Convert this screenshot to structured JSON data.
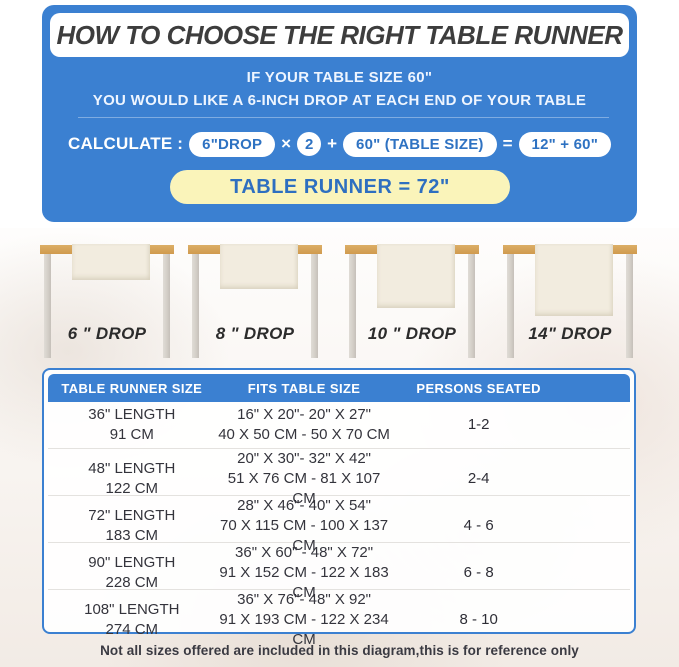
{
  "colors": {
    "panel_blue": "#3b80d1",
    "result_yellow": "#faf4ba",
    "pill_text_blue": "#2e72c2",
    "tabletop_tan": "#d5a158",
    "runner_cream": "#f2ecdf"
  },
  "header_panel": {
    "title": "HOW TO CHOOSE THE RIGHT TABLE RUNNER",
    "line1": "IF YOUR TABLE SIZE 60\"",
    "line2": "YOU WOULD LIKE A 6-INCH DROP AT EACH END OF YOUR TABLE",
    "calc_label": "CALCULATE :",
    "pill_drop": "6\"DROP",
    "op_multiply": "×",
    "multiplier": "2",
    "op_plus": "+",
    "pill_table_size": "60\" (TABLE SIZE)",
    "op_equals": "=",
    "pill_sum": "12\" + 60\"",
    "result": "TABLE RUNNER = 72\""
  },
  "drop_diagrams": [
    {
      "label": "6 \" DROP"
    },
    {
      "label": "8 \" DROP"
    },
    {
      "label": "10 \" DROP"
    },
    {
      "label": "14\" DROP"
    }
  ],
  "size_table": {
    "headers": [
      "TABLE RUNNER SIZE",
      "FITS TABLE SIZE",
      "PERSONS SEATED"
    ],
    "rows": [
      {
        "runner_in": "36\" LENGTH",
        "runner_cm": "91 CM",
        "fits_in": "16\" X 20\"- 20\" X 27\"",
        "fits_cm": "40 X 50 CM - 50 X 70 CM",
        "persons": "1-2"
      },
      {
        "runner_in": "48\" LENGTH",
        "runner_cm": "122 CM",
        "fits_in": "20\" X 30\"- 32\" X 42\"",
        "fits_cm": "51 X 76 CM - 81 X 107 CM",
        "persons": "2-4"
      },
      {
        "runner_in": "72\" LENGTH",
        "runner_cm": "183 CM",
        "fits_in": "28\" X 46\"- 40\" X 54\"",
        "fits_cm": "70 X 115 CM - 100 X 137 CM",
        "persons": "4 - 6"
      },
      {
        "runner_in": "90\" LENGTH",
        "runner_cm": "228 CM",
        "fits_in": "36\" X 60\" - 48\" X 72\"",
        "fits_cm": "91 X 152 CM - 122 X 183 CM",
        "persons": "6 - 8"
      },
      {
        "runner_in": "108\" LENGTH",
        "runner_cm": "274 CM",
        "fits_in": "36\" X 76\"- 48\" X 92\"",
        "fits_cm": "91 X 193 CM - 122 X 234 CM",
        "persons": "8 - 10"
      }
    ]
  },
  "footnote": "Not all sizes offered are included in this diagram,this is for reference only"
}
